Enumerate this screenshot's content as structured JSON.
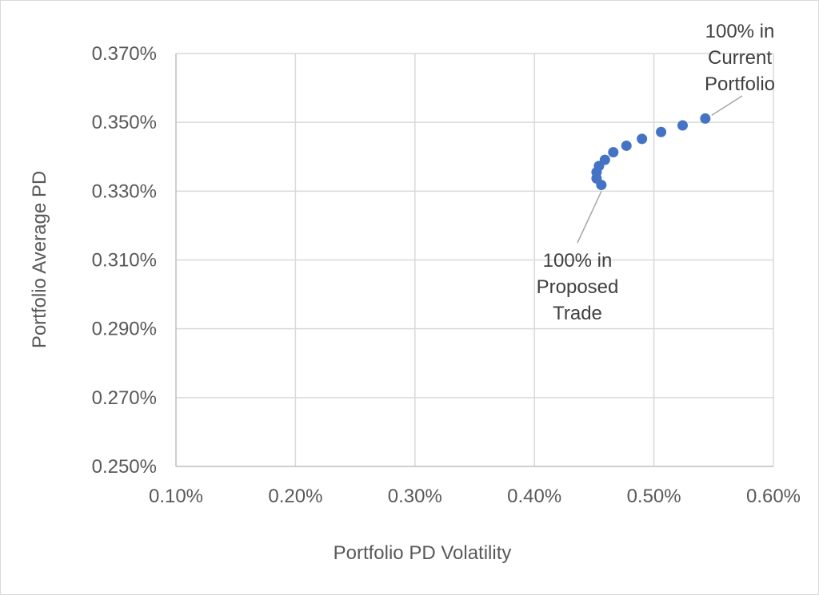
{
  "chart_data": {
    "type": "scatter",
    "title": "",
    "xlabel": "Portfolio PD Volatility",
    "ylabel": "Portfolio Average PD",
    "xlim": [
      0.1,
      0.6
    ],
    "ylim": [
      0.25,
      0.37
    ],
    "x_ticks": [
      0.1,
      0.2,
      0.3,
      0.4,
      0.5,
      0.6
    ],
    "y_ticks": [
      0.25,
      0.27,
      0.29,
      0.31,
      0.33,
      0.35,
      0.37
    ],
    "x_tick_labels": [
      "0.10%",
      "0.20%",
      "0.30%",
      "0.40%",
      "0.50%",
      "0.60%"
    ],
    "y_tick_labels": [
      "0.250%",
      "0.270%",
      "0.290%",
      "0.310%",
      "0.330%",
      "0.350%",
      "0.370%"
    ],
    "unit": "%",
    "grid": true,
    "legend": "none",
    "marker_color": "#4472c4",
    "series": [
      {
        "points": [
          {
            "x": 0.456,
            "y": 0.3318
          },
          {
            "x": 0.452,
            "y": 0.3337
          },
          {
            "x": 0.452,
            "y": 0.3355
          },
          {
            "x": 0.454,
            "y": 0.3373
          },
          {
            "x": 0.459,
            "y": 0.3391
          },
          {
            "x": 0.466,
            "y": 0.3413
          },
          {
            "x": 0.477,
            "y": 0.3432
          },
          {
            "x": 0.49,
            "y": 0.3452
          },
          {
            "x": 0.506,
            "y": 0.3472
          },
          {
            "x": 0.524,
            "y": 0.3491
          },
          {
            "x": 0.543,
            "y": 0.3511
          }
        ]
      }
    ],
    "annotations": [
      {
        "lines": [
          "100% in",
          "Current",
          "Portfolio"
        ],
        "point_index": 10
      },
      {
        "lines": [
          "100% in",
          "Proposed",
          "Trade"
        ],
        "point_index": 0
      }
    ]
  }
}
